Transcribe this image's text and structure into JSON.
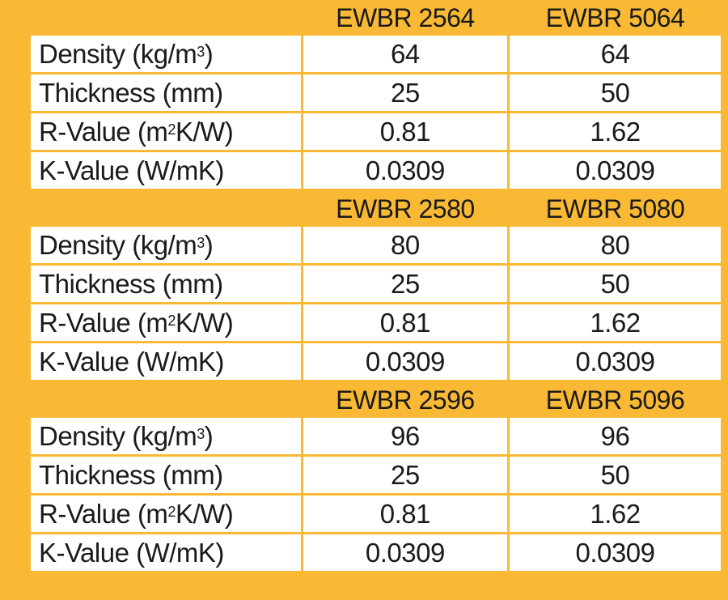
{
  "groups": [
    {
      "products": [
        "EWBR 2564",
        "EWBR 5064"
      ],
      "rows": [
        {
          "label_main": "Density (kg/m",
          "label_sup": "3",
          "label_end": ")",
          "values": [
            "64",
            "64"
          ]
        },
        {
          "label_main": "Thickness (mm)",
          "label_sup": "",
          "label_end": "",
          "values": [
            "25",
            "50"
          ]
        },
        {
          "label_main": "R-Value (m",
          "label_sup": "2",
          "label_end": "K/W)",
          "values": [
            "0.81",
            "1.62"
          ]
        },
        {
          "label_main": "K-Value (W/mK)",
          "label_sup": "",
          "label_end": "",
          "values": [
            "0.0309",
            "0.0309"
          ]
        }
      ]
    },
    {
      "products": [
        "EWBR 2580",
        "EWBR 5080"
      ],
      "rows": [
        {
          "label_main": "Density (kg/m",
          "label_sup": "3",
          "label_end": ")",
          "values": [
            "80",
            "80"
          ]
        },
        {
          "label_main": "Thickness (mm)",
          "label_sup": "",
          "label_end": "",
          "values": [
            "25",
            "50"
          ]
        },
        {
          "label_main": "R-Value (m",
          "label_sup": "2",
          "label_end": "K/W)",
          "values": [
            "0.81",
            "1.62"
          ]
        },
        {
          "label_main": "K-Value (W/mK)",
          "label_sup": "",
          "label_end": "",
          "values": [
            "0.0309",
            "0.0309"
          ]
        }
      ]
    },
    {
      "products": [
        "EWBR 2596",
        "EWBR 5096"
      ],
      "rows": [
        {
          "label_main": "Density (kg/m",
          "label_sup": "3",
          "label_end": ")",
          "values": [
            "96",
            "96"
          ]
        },
        {
          "label_main": "Thickness (mm)",
          "label_sup": "",
          "label_end": "",
          "values": [
            "25",
            "50"
          ]
        },
        {
          "label_main": "R-Value (m",
          "label_sup": "2",
          "label_end": "K/W)",
          "values": [
            "0.81",
            "1.62"
          ]
        },
        {
          "label_main": "K-Value (W/mK)",
          "label_sup": "",
          "label_end": "",
          "values": [
            "0.0309",
            "0.0309"
          ]
        }
      ]
    }
  ],
  "colors": {
    "accent": "#F9B934",
    "text": "#1a1a1a",
    "cell_bg": "#ffffff"
  }
}
